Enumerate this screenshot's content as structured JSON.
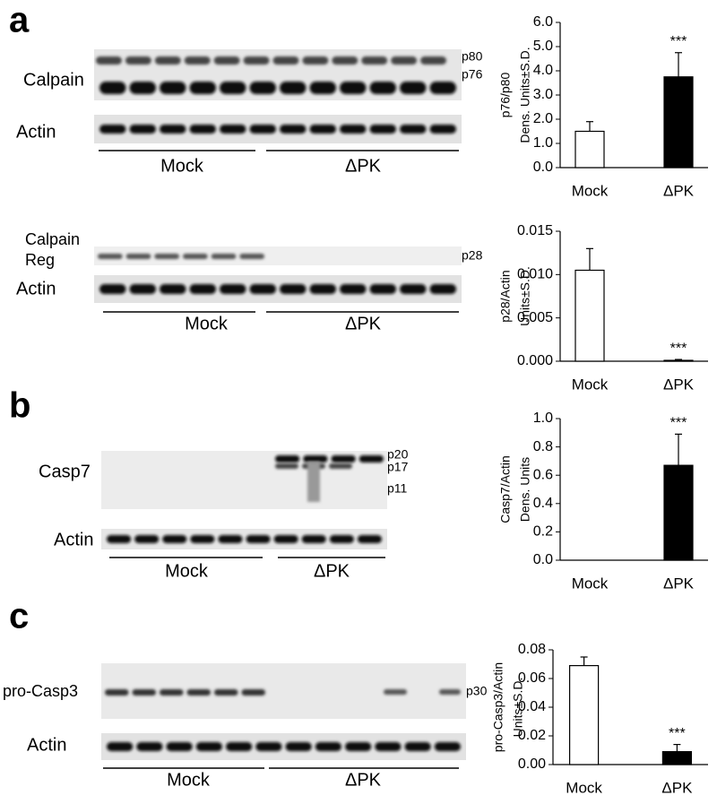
{
  "figure": {
    "panel_labels": [
      "a",
      "b",
      "c"
    ],
    "blot_labels": [
      "Calpain",
      "Actin",
      "p80",
      "p76",
      "Mock",
      "ΔPK",
      "Calpain",
      "Reg",
      "p28",
      "Actin",
      "Mock",
      "ΔPK",
      "Casp7",
      "p20",
      "p17",
      "p11",
      "Actin",
      "Mock",
      "ΔPK",
      "pro-Casp3",
      "p30",
      "Actin",
      "Mock",
      "ΔPK"
    ]
  },
  "chart_data": [
    {
      "type": "bar",
      "ylabel": [
        "p76/p80",
        "Dens. Units±S.D."
      ],
      "categories": [
        "Mock",
        "ΔPK"
      ],
      "values": [
        1.5,
        3.75
      ],
      "errors": [
        0.4,
        1.0
      ],
      "colors": [
        "#ffffff",
        "#000000"
      ],
      "annotation": "***",
      "ylim": [
        0,
        6
      ],
      "yticks": [
        {
          "value": 0,
          "label": "0.0"
        },
        {
          "value": 1,
          "label": "1.0"
        },
        {
          "value": 2,
          "label": "2.0"
        },
        {
          "value": 3,
          "label": "3.0"
        },
        {
          "value": 4,
          "label": "4.0"
        },
        {
          "value": 5,
          "label": "5.0"
        },
        {
          "value": 6,
          "label": "6.0"
        }
      ]
    },
    {
      "type": "bar",
      "ylabel": [
        "p28/Actin",
        "Units±S.D."
      ],
      "categories": [
        "Mock",
        "ΔPK"
      ],
      "values": [
        0.0105,
        0.0001
      ],
      "errors": [
        0.0025,
        0.0001
      ],
      "colors": [
        "#ffffff",
        "#000000"
      ],
      "annotation": "***",
      "ylim": [
        0,
        0.015
      ],
      "yticks": [
        {
          "value": 0,
          "label": "0.000"
        },
        0.005,
        {
          "value": 0.01,
          "label": "0.010"
        },
        0.015
      ]
    },
    {
      "type": "bar",
      "ylabel": [
        "Casp7/Actin",
        "Dens. Units"
      ],
      "categories": [
        "Mock",
        "ΔPK"
      ],
      "values": [
        0,
        0.67
      ],
      "errors": [
        0,
        0.22
      ],
      "colors": [
        "#ffffff",
        "#000000"
      ],
      "annotation": "***",
      "ylim": [
        0,
        1
      ],
      "yticks": [
        {
          "value": 0,
          "label": "0.0"
        },
        0.2,
        0.4,
        0.6,
        0.8,
        {
          "value": 1,
          "label": "1.0"
        }
      ]
    },
    {
      "type": "bar",
      "ylabel": [
        "pro-Casp3/Actin",
        "Units±S.D."
      ],
      "categories": [
        "Mock",
        "ΔPK"
      ],
      "values": [
        0.069,
        0.009
      ],
      "errors": [
        0.006,
        0.005
      ],
      "colors": [
        "#ffffff",
        "#000000"
      ],
      "annotation": "***",
      "ylim": [
        0,
        0.08
      ],
      "yticks": [
        {
          "value": 0,
          "label": "0.00"
        },
        0.02,
        0.04,
        0.06,
        0.08
      ]
    }
  ]
}
